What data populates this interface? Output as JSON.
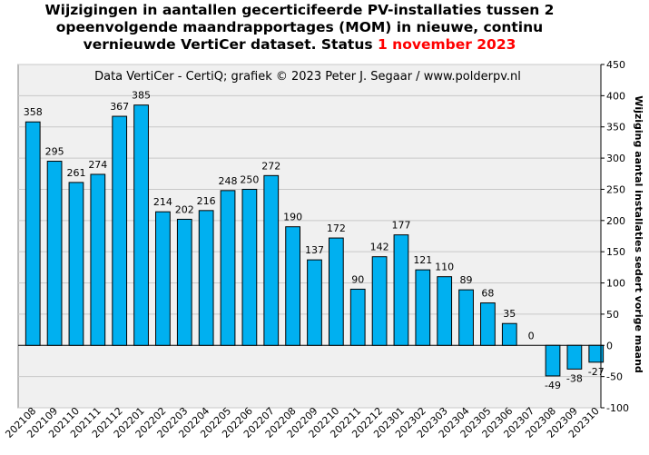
{
  "chart_data": {
    "type": "bar",
    "title_line1": "Wijzigingen in aantallen gecerticifeerde PV-installaties tussen 2",
    "title_line2": "opeenvolgende maandrapportages (MOM) in nieuwe, continu",
    "title_line3_prefix": "vernieuwde VertiCer dataset. Status ",
    "title_line3_highlight": "1 november 2023",
    "credit": "Data VertiCer - CertiQ; grafiek © 2023 Peter J. Segaar / www.polderpv.nl",
    "ylabel": "Wijziging aantal installaties sedert vorige maand",
    "categories": [
      "202108",
      "202109",
      "202110",
      "202111",
      "202112",
      "202201",
      "202202",
      "202203",
      "202204",
      "202205",
      "202206",
      "202207",
      "202208",
      "202209",
      "202210",
      "202211",
      "202212",
      "202301",
      "202302",
      "202303",
      "202304",
      "202305",
      "202306",
      "202307",
      "202308",
      "202309",
      "202310"
    ],
    "values": [
      358,
      295,
      261,
      274,
      367,
      385,
      214,
      202,
      216,
      248,
      250,
      272,
      190,
      137,
      172,
      90,
      142,
      177,
      121,
      110,
      89,
      68,
      35,
      0,
      -49,
      -38,
      -27
    ],
    "data_labels": [
      "358",
      "295",
      "261",
      "274",
      "367",
      "385",
      "214",
      "202",
      "216",
      "248",
      "250",
      "272",
      "190",
      "137",
      "172",
      "90",
      "142",
      "177",
      "121",
      "110",
      "89",
      "68",
      "35",
      "0",
      "-49",
      "-38",
      "-27"
    ],
    "y_ticks": [
      "450",
      "400",
      "350",
      "300",
      "250",
      "200",
      "150",
      "100",
      "50",
      "0",
      "-50",
      "-100"
    ],
    "ylim": [
      -100,
      450
    ],
    "grid": "horizontal",
    "axis_position": "right",
    "bar_color": "#00b0f0",
    "bar_edge_color": "#000000",
    "plot_background": "#f0f0f0",
    "title_highlight_color": "#ff0000"
  }
}
